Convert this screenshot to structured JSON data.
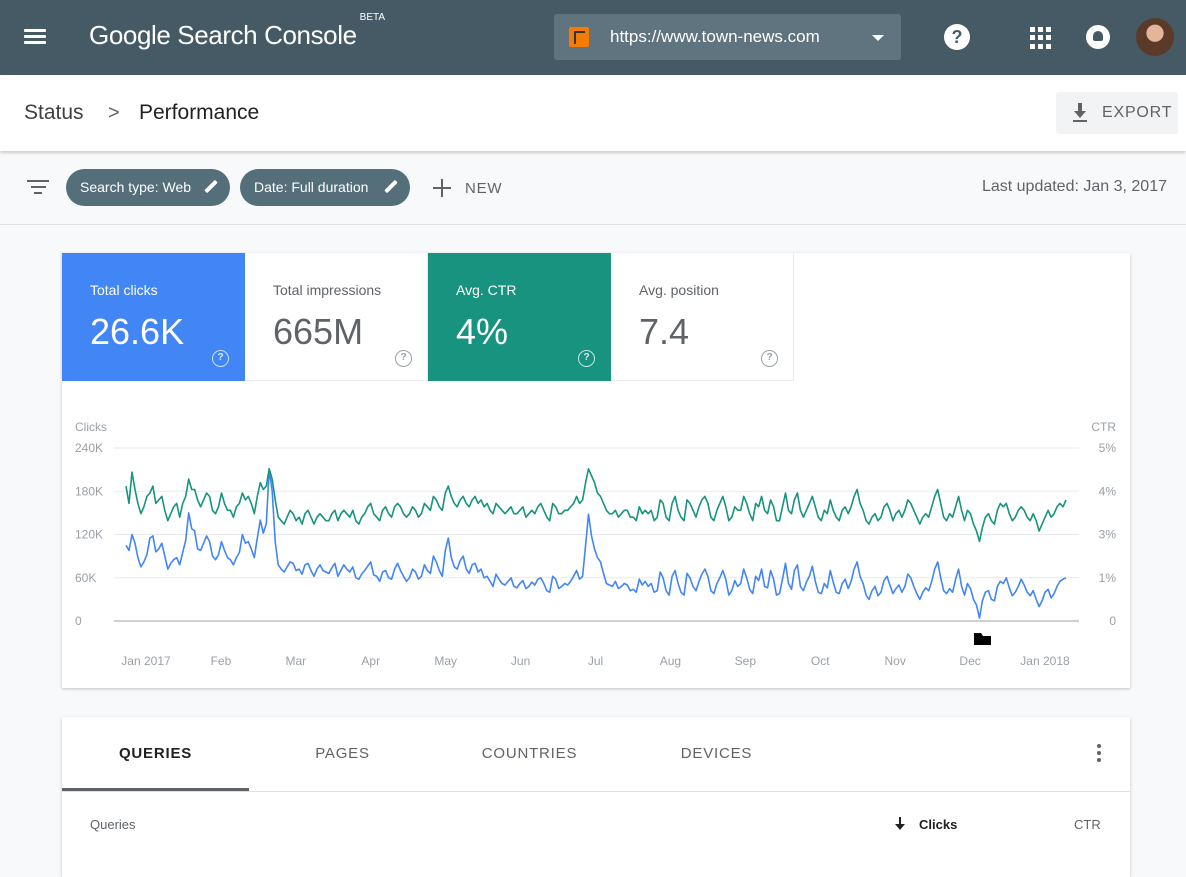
{
  "app": {
    "logo_text": "Google Search Console",
    "logo_badge": "BETA"
  },
  "topbar": {
    "property_url": "https://www.town-news.com",
    "help_label": "?",
    "icons": [
      "menu-icon",
      "property-icon",
      "dropdown-caret-icon",
      "help-icon",
      "apps-icon",
      "notifications-icon",
      "avatar"
    ]
  },
  "breadcrumb": {
    "parent": "Status",
    "separator": ">",
    "current": "Performance"
  },
  "export": {
    "label": "EXPORT",
    "icon": "download-icon"
  },
  "filters": {
    "chips": [
      {
        "label": "Search type: Web"
      },
      {
        "label": "Date: Full duration"
      }
    ],
    "new_label": "NEW",
    "last_updated": "Last updated: Jan 3, 2017"
  },
  "metrics": [
    {
      "label": "Total clicks",
      "value": "26.6K",
      "selected": true,
      "color": "#4285f4"
    },
    {
      "label": "Total impressions",
      "value": "665M",
      "selected": false
    },
    {
      "label": "Avg. CTR",
      "value": "4%",
      "selected": true,
      "color": "#17937f"
    },
    {
      "label": "Avg. position",
      "value": "7.4",
      "selected": false
    }
  ],
  "chart_data": {
    "type": "line",
    "ylabel": "Clicks",
    "y2label": "CTR",
    "yticks": [
      "0",
      "60K",
      "120K",
      "180K",
      "240K"
    ],
    "y2ticks": [
      "0",
      "1%",
      "3%",
      "4%",
      "5%"
    ],
    "ylim": [
      0,
      240000
    ],
    "y2lim": [
      0,
      5
    ],
    "xticks": [
      "Jan 2017",
      "Feb",
      "Mar",
      "Apr",
      "May",
      "Jun",
      "Jul",
      "Aug",
      "Sep",
      "Oct",
      "Nov",
      "Dec",
      "Jan 2018"
    ],
    "grid": true,
    "series": [
      {
        "name": "Clicks",
        "axis": "left",
        "color": "#4285f4",
        "values": [
          105000,
          98000,
          120000,
          108000,
          88000,
          75000,
          82000,
          92000,
          115000,
          118000,
          96000,
          100000,
          108000,
          90000,
          72000,
          80000,
          85000,
          88000,
          78000,
          95000,
          112000,
          150000,
          128000,
          125000,
          100000,
          98000,
          108000,
          118000,
          110000,
          90000,
          85000,
          92000,
          110000,
          98000,
          88000,
          85000,
          78000,
          88000,
          95000,
          120000,
          108000,
          110000,
          100000,
          88000,
          115000,
          140000,
          122000,
          135000,
          210000,
          180000,
          110000,
          78000,
          72000,
          68000,
          75000,
          82000,
          80000,
          70000,
          72000,
          65000,
          78000,
          80000,
          70000,
          62000,
          72000,
          78000,
          70000,
          68000,
          66000,
          74000,
          80000,
          62000,
          70000,
          78000,
          72000,
          68000,
          75000,
          60000,
          58000,
          65000,
          70000,
          76000,
          82000,
          64000,
          62000,
          55000,
          68000,
          70000,
          60000,
          58000,
          72000,
          80000,
          70000,
          62000,
          55000,
          60000,
          72000,
          68000,
          58000,
          62000,
          78000,
          70000,
          66000,
          90000,
          82000,
          70000,
          62000,
          98000,
          115000,
          88000,
          75000,
          72000,
          84000,
          90000,
          72000,
          66000,
          78000,
          80000,
          68000,
          72000,
          60000,
          62000,
          55000,
          48000,
          65000,
          58000,
          52000,
          50000,
          55000,
          60000,
          48000,
          46000,
          52000,
          56000,
          45000,
          48000,
          54000,
          50000,
          58000,
          60000,
          52000,
          42000,
          40000,
          62000,
          58000,
          45000,
          48000,
          52000,
          50000,
          55000,
          62000,
          70000,
          58000,
          62000,
          105000,
          148000,
          118000,
          100000,
          88000,
          82000,
          66000,
          52000,
          50000,
          48000,
          55000,
          45000,
          48000,
          52000,
          50000,
          42000,
          44000,
          40000,
          58000,
          50000,
          55000,
          48000,
          52000,
          40000,
          42000,
          68000,
          60000,
          42000,
          36000,
          62000,
          70000,
          52000,
          40000,
          36000,
          66000,
          60000,
          48000,
          42000,
          55000,
          65000,
          72000,
          62000,
          42000,
          38000,
          52000,
          60000,
          70000,
          58000,
          36000,
          42000,
          56000,
          48000,
          52000,
          72000,
          60000,
          44000,
          38000,
          62000,
          56000,
          72000,
          48000,
          46000,
          70000,
          58000,
          36000,
          38000,
          58000,
          80000,
          52000,
          44000,
          70000,
          78000,
          48000,
          42000,
          54000,
          62000,
          76000,
          55000,
          40000,
          38000,
          52000,
          46000,
          70000,
          54000,
          40000,
          38000,
          52000,
          58000,
          45000,
          55000,
          72000,
          82000,
          62000,
          52000,
          36000,
          30000,
          42000,
          48000,
          35000,
          40000,
          56000,
          62000,
          50000,
          38000,
          45000,
          50000,
          40000,
          48000,
          65000,
          60000,
          48000,
          38000,
          30000,
          40000,
          46000,
          42000,
          55000,
          72000,
          82000,
          60000,
          42000,
          38000,
          45000,
          40000,
          58000,
          72000,
          48000,
          36000,
          52000,
          45000,
          30000,
          22000,
          4000,
          28000,
          40000,
          42000,
          30000,
          28000,
          48000,
          55000,
          52000,
          60000,
          46000,
          35000,
          40000,
          48000,
          58000,
          50000,
          40000,
          35000,
          42000,
          30000,
          20000,
          28000,
          40000,
          44000,
          32000,
          38000,
          48000,
          55000,
          58000,
          60000
        ]
      },
      {
        "name": "CTR",
        "axis": "right",
        "color": "#17937f",
        "values": [
          3.9,
          3.4,
          4.3,
          3.8,
          3.4,
          3.1,
          3.3,
          3.6,
          3.7,
          3.9,
          3.4,
          3.5,
          3.6,
          3.2,
          2.9,
          3.1,
          3.3,
          3.4,
          3.0,
          3.4,
          3.6,
          4.1,
          3.8,
          3.8,
          3.5,
          3.3,
          3.5,
          3.7,
          3.6,
          3.2,
          3.1,
          3.3,
          3.7,
          3.4,
          3.2,
          3.2,
          3.0,
          3.3,
          3.4,
          3.7,
          3.5,
          3.6,
          3.4,
          3.1,
          3.6,
          4.0,
          3.8,
          3.9,
          4.4,
          4.1,
          3.5,
          3.0,
          2.9,
          2.8,
          3.0,
          3.2,
          3.1,
          2.9,
          3.0,
          2.8,
          3.1,
          3.2,
          3.0,
          2.8,
          3.0,
          3.1,
          3.0,
          2.9,
          2.9,
          3.1,
          3.2,
          2.9,
          3.1,
          3.2,
          3.1,
          3.0,
          3.2,
          2.9,
          2.8,
          3.0,
          3.1,
          3.3,
          3.4,
          3.1,
          3.0,
          2.9,
          3.2,
          3.3,
          3.1,
          3.0,
          3.3,
          3.4,
          3.3,
          3.1,
          3.0,
          3.1,
          3.3,
          3.2,
          3.0,
          3.1,
          3.4,
          3.3,
          3.2,
          3.6,
          3.5,
          3.3,
          3.2,
          3.7,
          3.9,
          3.6,
          3.4,
          3.3,
          3.5,
          3.6,
          3.4,
          3.3,
          3.5,
          3.6,
          3.4,
          3.5,
          3.3,
          3.4,
          3.2,
          3.1,
          3.4,
          3.3,
          3.2,
          3.1,
          3.2,
          3.3,
          3.1,
          3.1,
          3.2,
          3.3,
          3.0,
          3.1,
          3.2,
          3.1,
          3.3,
          3.4,
          3.2,
          3.0,
          2.9,
          3.4,
          3.3,
          3.1,
          3.1,
          3.2,
          3.2,
          3.3,
          3.4,
          3.6,
          3.4,
          3.5,
          4.0,
          4.4,
          4.2,
          4.0,
          3.7,
          3.6,
          3.4,
          3.2,
          3.1,
          3.1,
          3.2,
          3.0,
          3.1,
          3.2,
          3.2,
          3.0,
          3.0,
          2.9,
          3.3,
          3.1,
          3.2,
          3.1,
          3.2,
          2.9,
          3.0,
          3.5,
          3.4,
          3.0,
          2.9,
          3.4,
          3.6,
          3.2,
          3.0,
          2.9,
          3.5,
          3.4,
          3.2,
          3.0,
          3.3,
          3.5,
          3.6,
          3.4,
          3.0,
          2.9,
          3.2,
          3.4,
          3.6,
          3.3,
          2.9,
          3.0,
          3.3,
          3.2,
          3.2,
          3.6,
          3.4,
          3.1,
          2.9,
          3.4,
          3.3,
          3.6,
          3.2,
          3.1,
          3.5,
          3.3,
          2.9,
          2.9,
          3.3,
          3.7,
          3.2,
          3.1,
          3.5,
          3.7,
          3.2,
          3.0,
          3.2,
          3.4,
          3.6,
          3.3,
          3.0,
          2.9,
          3.2,
          3.1,
          3.5,
          3.2,
          3.0,
          2.9,
          3.2,
          3.3,
          3.1,
          3.3,
          3.6,
          3.8,
          3.4,
          3.2,
          2.9,
          2.8,
          3.0,
          3.1,
          2.9,
          3.0,
          3.3,
          3.4,
          3.2,
          2.9,
          3.1,
          3.2,
          3.0,
          3.2,
          3.5,
          3.4,
          3.2,
          3.0,
          2.8,
          3.0,
          3.1,
          3.0,
          3.3,
          3.6,
          3.8,
          3.4,
          3.0,
          2.9,
          3.1,
          3.0,
          3.3,
          3.6,
          3.2,
          2.9,
          3.2,
          3.1,
          2.8,
          2.6,
          2.3,
          2.7,
          3.0,
          3.1,
          2.9,
          2.8,
          3.2,
          3.4,
          3.3,
          3.4,
          3.1,
          2.9,
          3.0,
          3.2,
          3.3,
          3.2,
          3.0,
          2.9,
          3.1,
          2.9,
          2.6,
          2.8,
          3.0,
          3.2,
          3.0,
          3.1,
          3.3,
          3.4,
          3.3,
          3.5
        ]
      }
    ]
  },
  "table": {
    "tabs": [
      {
        "label": "QUERIES",
        "active": true
      },
      {
        "label": "PAGES",
        "active": false
      },
      {
        "label": "COUNTRIES",
        "active": false
      },
      {
        "label": "DEVICES",
        "active": false
      }
    ],
    "columns": {
      "queries": "Queries",
      "clicks": "Clicks",
      "ctr": "CTR"
    }
  }
}
